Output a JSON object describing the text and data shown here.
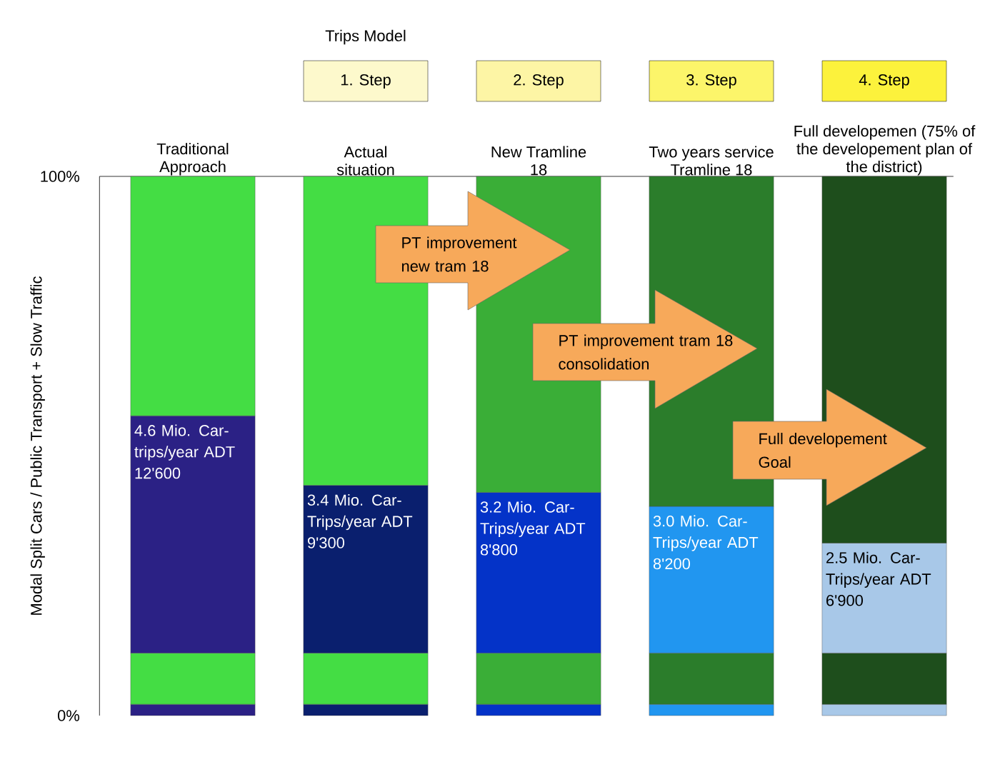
{
  "chart_data": {
    "type": "bar",
    "stacked": true,
    "categories": [
      "Traditional Approach",
      "Actual situation",
      "New Tramline 18",
      "Two years service Tramline 18",
      "Full developemen (75% of the developement plan of the district)"
    ],
    "ylabel": "Modal Split Cars / Public Transport + Slow Traffic",
    "ylim": [
      0,
      100
    ],
    "yticks": [
      {
        "value": 0,
        "label": "0%"
      },
      {
        "value": 100,
        "label": "100%"
      }
    ],
    "series": [
      {
        "colors": [
          "#2b2185",
          "#0a1f6e",
          "#0433c8",
          "#2196f0",
          "#a8c8e8"
        ],
        "values": [
          2.1,
          2.1,
          2.1,
          2.1,
          2.1
        ]
      },
      {
        "colors": [
          "#44dd44",
          "#44dd44",
          "#3aae37",
          "#2b7d2b",
          "#1e4e1c"
        ],
        "values": [
          9.5,
          9.5,
          9.5,
          9.5,
          9.5
        ]
      },
      {
        "colors": [
          "#2b2185",
          "#0a1f6e",
          "#0433c8",
          "#2196f0",
          "#a8c8e8"
        ],
        "values": [
          44.0,
          31.1,
          29.8,
          27.2,
          20.4
        ]
      },
      {
        "colors": [
          "#44dd44",
          "#44dd44",
          "#3aae37",
          "#2b7d2b",
          "#1e4e1c"
        ],
        "values": [
          44.4,
          57.3,
          58.6,
          61.2,
          68.0
        ]
      }
    ],
    "annotations": [
      "Trips Model",
      "1. Step",
      "2. Step",
      "3. Step",
      "4. Step",
      "PT improvement new tram 18",
      "PT improvement tram 18 consolidation",
      "Full developement Goal",
      "4.6 Mio. Car-trips/year ADT 12'600",
      "3.4 Mio. Car-Trips/year ADT 9'300",
      "3.2 Mio. Car-Trips/year ADT 8'800",
      "3.0 Mio. Car-Trips/year ADT 8'200",
      "2.5 Mio. Car-Trips/year ADT 6'900"
    ]
  }
}
